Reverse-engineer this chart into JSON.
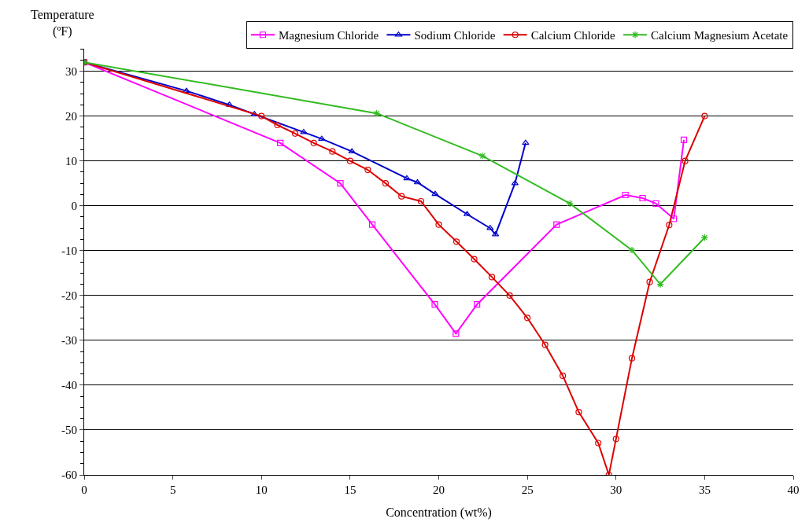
{
  "chart_data": {
    "type": "line",
    "xlabel": "Concentration (wt%)",
    "ylabel": "Temperature\n(ºF)",
    "xlim": [
      0,
      40
    ],
    "xticks": [
      0,
      5,
      10,
      15,
      20,
      25,
      30,
      35,
      40
    ],
    "ylim": [
      -60,
      35
    ],
    "yticks": [
      -60,
      -50,
      -40,
      -30,
      -20,
      -10,
      0,
      10,
      20,
      30
    ],
    "grid": "y",
    "legend": "top right",
    "series": [
      {
        "name": "Magnesium Chloride",
        "color": "#ff00ff",
        "marker": "square",
        "x": [
          0,
          11.06,
          14.45,
          16.25,
          19.78,
          20.97,
          22.16,
          26.65,
          30.53,
          31.5,
          32.25,
          33.26,
          33.83
        ],
        "values": [
          32,
          14,
          5,
          -4.2,
          -22,
          -28.5,
          -22,
          -4.2,
          2.4,
          1.7,
          0.5,
          -2.9,
          14.7
        ]
      },
      {
        "name": "Sodium Chloride",
        "color": "#0000cc",
        "marker": "triangle",
        "x": [
          0,
          5.77,
          8.19,
          9.6,
          12.38,
          13.4,
          15.1,
          18.2,
          18.8,
          19.8,
          21.6,
          22.9,
          23.2,
          24.3,
          24.9
        ],
        "values": [
          32,
          25.6,
          22.5,
          20.4,
          16.4,
          14.9,
          12.1,
          6.1,
          5.2,
          2.6,
          -1.9,
          -5,
          -6.4,
          5,
          14
        ]
      },
      {
        "name": "Calcium Chloride",
        "color": "#dd0000",
        "marker": "circle",
        "x": [
          0,
          10,
          10.9,
          11.9,
          12.95,
          14,
          15,
          16,
          17,
          17.9,
          19,
          20,
          21,
          22,
          23,
          24,
          25,
          26,
          27,
          27.9,
          29,
          29.6,
          30,
          30.9,
          31.9,
          33,
          33.9,
          35
        ],
        "values": [
          32,
          20,
          18,
          16.1,
          14,
          12.1,
          10,
          8,
          5,
          2.1,
          1,
          -4.2,
          -8,
          -11.9,
          -15.9,
          -20,
          -25,
          -31,
          -37.9,
          -46,
          -52.9,
          -60,
          -52,
          -34,
          -17,
          -4.3,
          10,
          20
        ]
      },
      {
        "name": "Calcium Magnesium Acetate",
        "color": "#33bb22",
        "marker": "cross",
        "x": [
          0,
          16.5,
          22.47,
          27.4,
          30.9,
          32.5,
          35
        ],
        "values": [
          32,
          20.6,
          11.1,
          0.5,
          -9.9,
          -17.5,
          -7.1
        ]
      }
    ]
  }
}
